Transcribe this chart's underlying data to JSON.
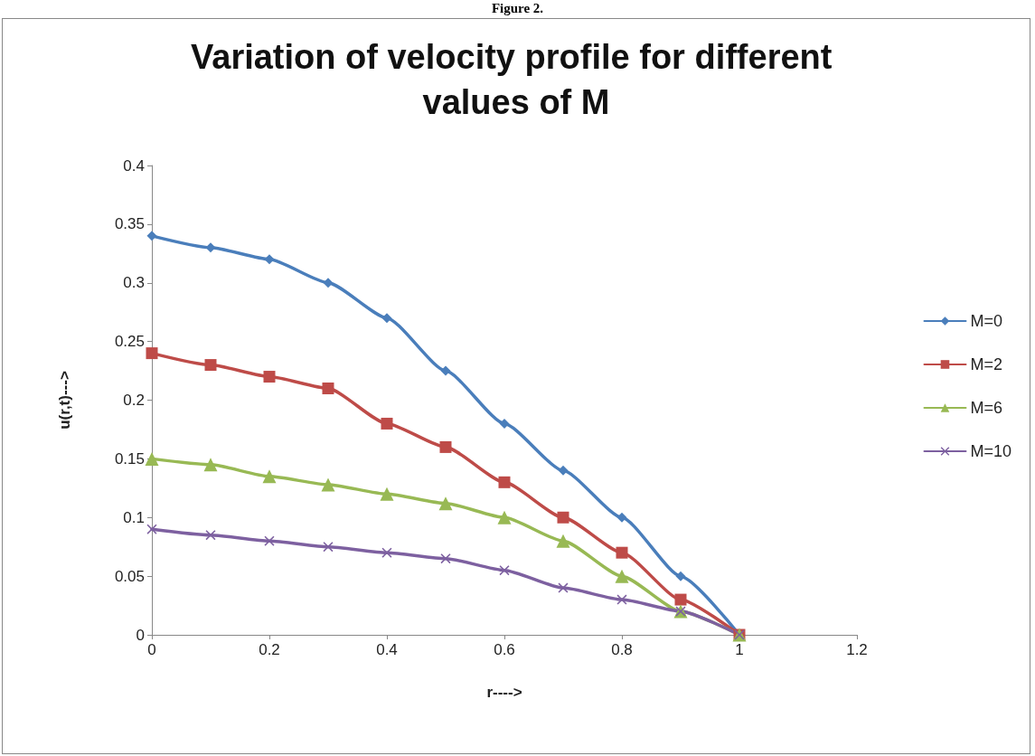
{
  "chart_data": {
    "type": "line",
    "title": "Variation of velocity profile for different values of M",
    "xlabel": "r---->",
    "ylabel": "u(r,t)--->",
    "annotations": [
      "Figure 2."
    ],
    "x": [
      0,
      0.1,
      0.2,
      0.3,
      0.4,
      0.5,
      0.6,
      0.7,
      0.8,
      0.9,
      1
    ],
    "series": [
      {
        "name": "M=0",
        "color": "#4a7ebb",
        "marker": "diamond",
        "values": [
          0.34,
          0.33,
          0.32,
          0.3,
          0.27,
          0.225,
          0.18,
          0.14,
          0.1,
          0.05,
          0
        ]
      },
      {
        "name": "M=2",
        "color": "#be4b48",
        "marker": "square",
        "values": [
          0.24,
          0.23,
          0.22,
          0.21,
          0.18,
          0.16,
          0.13,
          0.1,
          0.07,
          0.03,
          0
        ]
      },
      {
        "name": "M=6",
        "color": "#98b954",
        "marker": "triangle",
        "values": [
          0.15,
          0.145,
          0.135,
          0.128,
          0.12,
          0.112,
          0.1,
          0.08,
          0.05,
          0.02,
          0
        ]
      },
      {
        "name": "M=10",
        "color": "#7d60a0",
        "marker": "cross",
        "values": [
          0.09,
          0.085,
          0.08,
          0.075,
          0.07,
          0.065,
          0.055,
          0.04,
          0.03,
          0.02,
          0
        ]
      }
    ],
    "xlim": [
      0,
      1.2
    ],
    "xticks": [
      0,
      0.2,
      0.4,
      0.6,
      0.8,
      1,
      1.2
    ],
    "ylim": [
      0,
      0.4
    ],
    "yticks": [
      0,
      0.05,
      0.1,
      0.15,
      0.2,
      0.25,
      0.3,
      0.35,
      0.4
    ],
    "grid": false,
    "legend": "right",
    "line_style": "solid"
  }
}
